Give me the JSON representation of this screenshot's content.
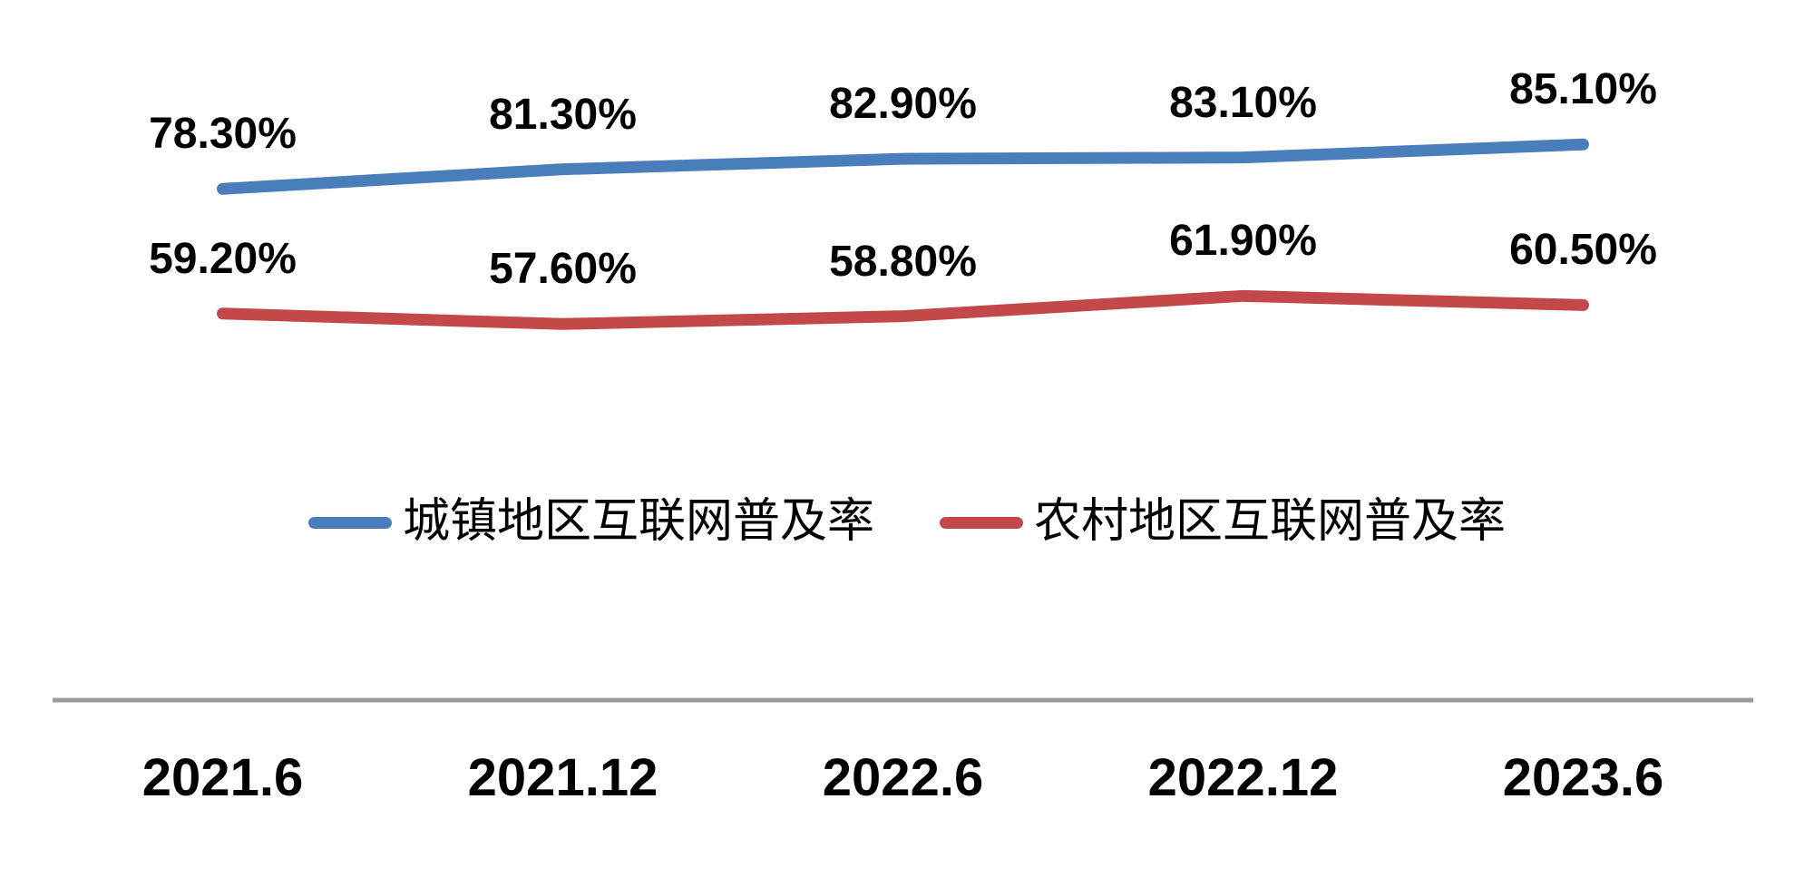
{
  "chart_data": {
    "type": "line",
    "categories": [
      "2021.6",
      "2021.12",
      "2022.6",
      "2022.12",
      "2023.6"
    ],
    "series": [
      {
        "name": "城镇地区互联网普及率",
        "color": "#4A7EBB",
        "values": [
          78.3,
          81.3,
          82.9,
          83.1,
          85.1
        ],
        "labels": [
          "78.30%",
          "81.30%",
          "82.90%",
          "83.10%",
          "85.10%"
        ]
      },
      {
        "name": "农村地区互联网普及率",
        "color": "#C3484A",
        "values": [
          59.2,
          57.6,
          58.8,
          61.9,
          60.5
        ],
        "labels": [
          "59.20%",
          "57.60%",
          "58.80%",
          "61.90%",
          "60.50%"
        ]
      }
    ],
    "title": "",
    "xlabel": "",
    "ylabel": "",
    "ylim": [
      0,
      100
    ],
    "grid": false,
    "legend_position": "bottom-center",
    "axis_line_color": "#9B9B9B",
    "data_label_color": "#000000",
    "x_label_color": "#000000"
  }
}
